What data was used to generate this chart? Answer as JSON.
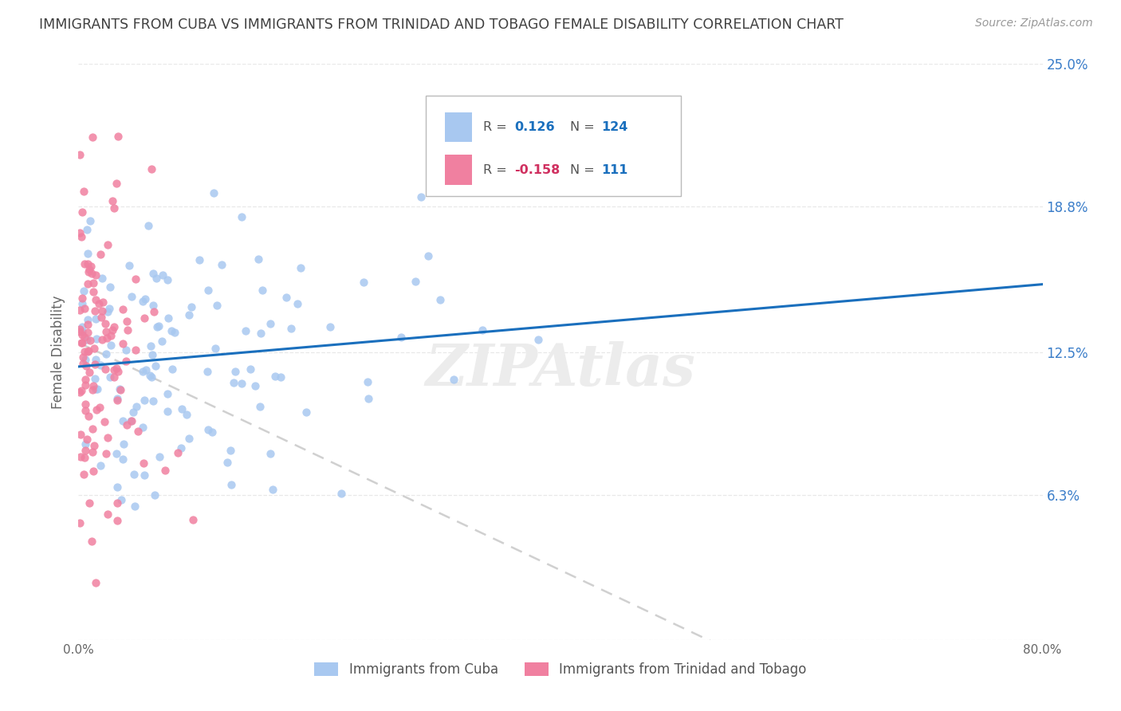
{
  "title": "IMMIGRANTS FROM CUBA VS IMMIGRANTS FROM TRINIDAD AND TOBAGO FEMALE DISABILITY CORRELATION CHART",
  "source": "Source: ZipAtlas.com",
  "ylabel": "Female Disability",
  "legend_label1": "Immigrants from Cuba",
  "legend_label2": "Immigrants from Trinidad and Tobago",
  "r1": 0.126,
  "n1": 124,
  "r2": -0.158,
  "n2": 111,
  "color1": "#a8c8f0",
  "color2": "#f080a0",
  "line1_color": "#1a6fbd",
  "line2_color": "#d0d0d0",
  "xmin": 0.0,
  "xmax": 0.8,
  "ymin": 0.0,
  "ymax": 0.25,
  "background_color": "#ffffff",
  "grid_color": "#e8e8e8",
  "title_color": "#404040",
  "r_label_color1": "#1a6fbd",
  "r_label_color2": "#d03060",
  "n_label_color": "#1a6fbd",
  "watermark": "ZIPAtlas"
}
